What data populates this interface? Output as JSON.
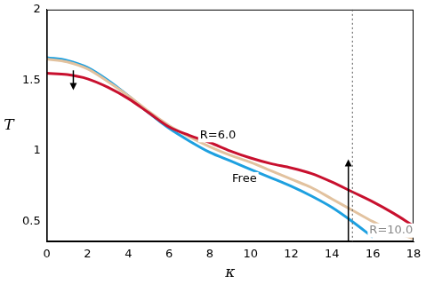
{
  "chart_data": {
    "type": "line",
    "x_label": "κ",
    "y_label": "T",
    "x": [
      0,
      1,
      2,
      3,
      4,
      5,
      6,
      7,
      8,
      9,
      10,
      11,
      12,
      13,
      14,
      15,
      16,
      17,
      18
    ],
    "series": [
      {
        "name": "R=6.0",
        "color": "#c8102e",
        "values": [
          1.55,
          1.54,
          1.51,
          1.45,
          1.37,
          1.27,
          1.17,
          1.11,
          1.06,
          1.0,
          0.95,
          0.91,
          0.88,
          0.84,
          0.78,
          0.71,
          0.64,
          0.56,
          0.47
        ]
      },
      {
        "name": "R=10.0",
        "color": "#e2c29f",
        "values": [
          1.65,
          1.63,
          1.58,
          1.49,
          1.39,
          1.28,
          1.18,
          1.1,
          1.03,
          0.97,
          0.92,
          0.86,
          0.8,
          0.74,
          0.66,
          0.58,
          0.5,
          0.43,
          0.38
        ]
      },
      {
        "name": "Free",
        "color": "#1ea0e0",
        "values": [
          1.66,
          1.64,
          1.59,
          1.5,
          1.39,
          1.27,
          1.16,
          1.07,
          0.99,
          0.93,
          0.87,
          0.81,
          0.75,
          0.68,
          0.6,
          0.5,
          0.39,
          null,
          null
        ]
      }
    ],
    "xlim": [
      0,
      18
    ],
    "xticks": [
      0,
      2,
      4,
      6,
      8,
      10,
      12,
      14,
      16,
      18
    ],
    "ylim": [
      0.36,
      2
    ],
    "yticks": [
      0.5,
      1,
      1.5,
      2
    ],
    "grid": false,
    "vlines": [
      15
    ],
    "arrows": [
      {
        "x": 1.3,
        "from": 1.57,
        "to": 1.43
      },
      {
        "x": 14.8,
        "from": 0.36,
        "to": 0.94
      }
    ]
  }
}
